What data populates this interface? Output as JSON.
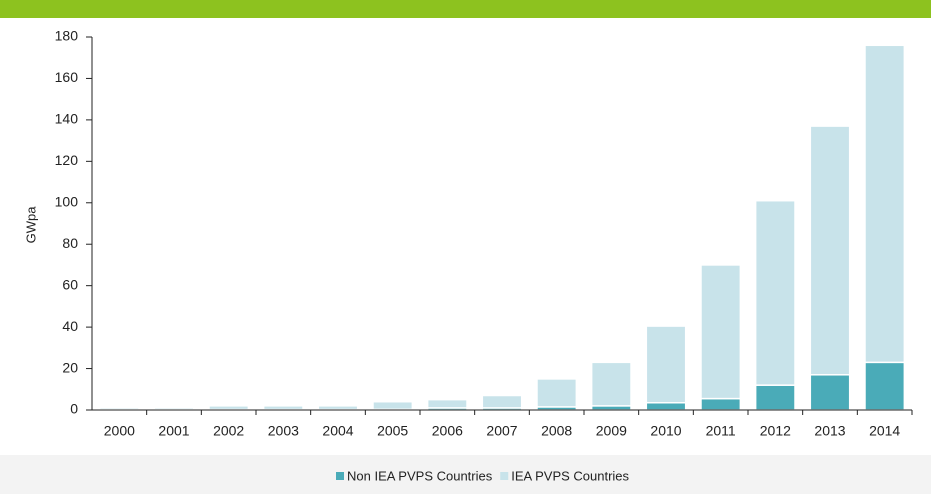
{
  "chart_data": {
    "type": "stacked_bar",
    "y_label": "GWpa",
    "categories": [
      "2000",
      "2001",
      "2002",
      "2003",
      "2004",
      "2005",
      "2006",
      "2007",
      "2008",
      "2009",
      "2010",
      "2011",
      "2012",
      "2013",
      "2014"
    ],
    "series": [
      {
        "name": "Non IEA PVPS Countries",
        "color": "#4aabb8",
        "values": [
          0.1,
          0.1,
          0.2,
          0.2,
          0.2,
          0.3,
          1,
          1,
          1.5,
          2,
          3.5,
          5.5,
          12,
          17,
          23
        ]
      },
      {
        "name": "IEA PVPS Countries",
        "color": "#c8e3ea",
        "values": [
          0.9,
          0.9,
          1.8,
          1.8,
          1.8,
          3.7,
          4,
          6,
          13.5,
          21,
          37,
          64.5,
          89,
          120,
          153
        ]
      }
    ],
    "ylim": [
      0,
      180
    ],
    "yticks": [
      0,
      20,
      40,
      60,
      80,
      100,
      120,
      140,
      160,
      180
    ],
    "legend": "bottom"
  }
}
